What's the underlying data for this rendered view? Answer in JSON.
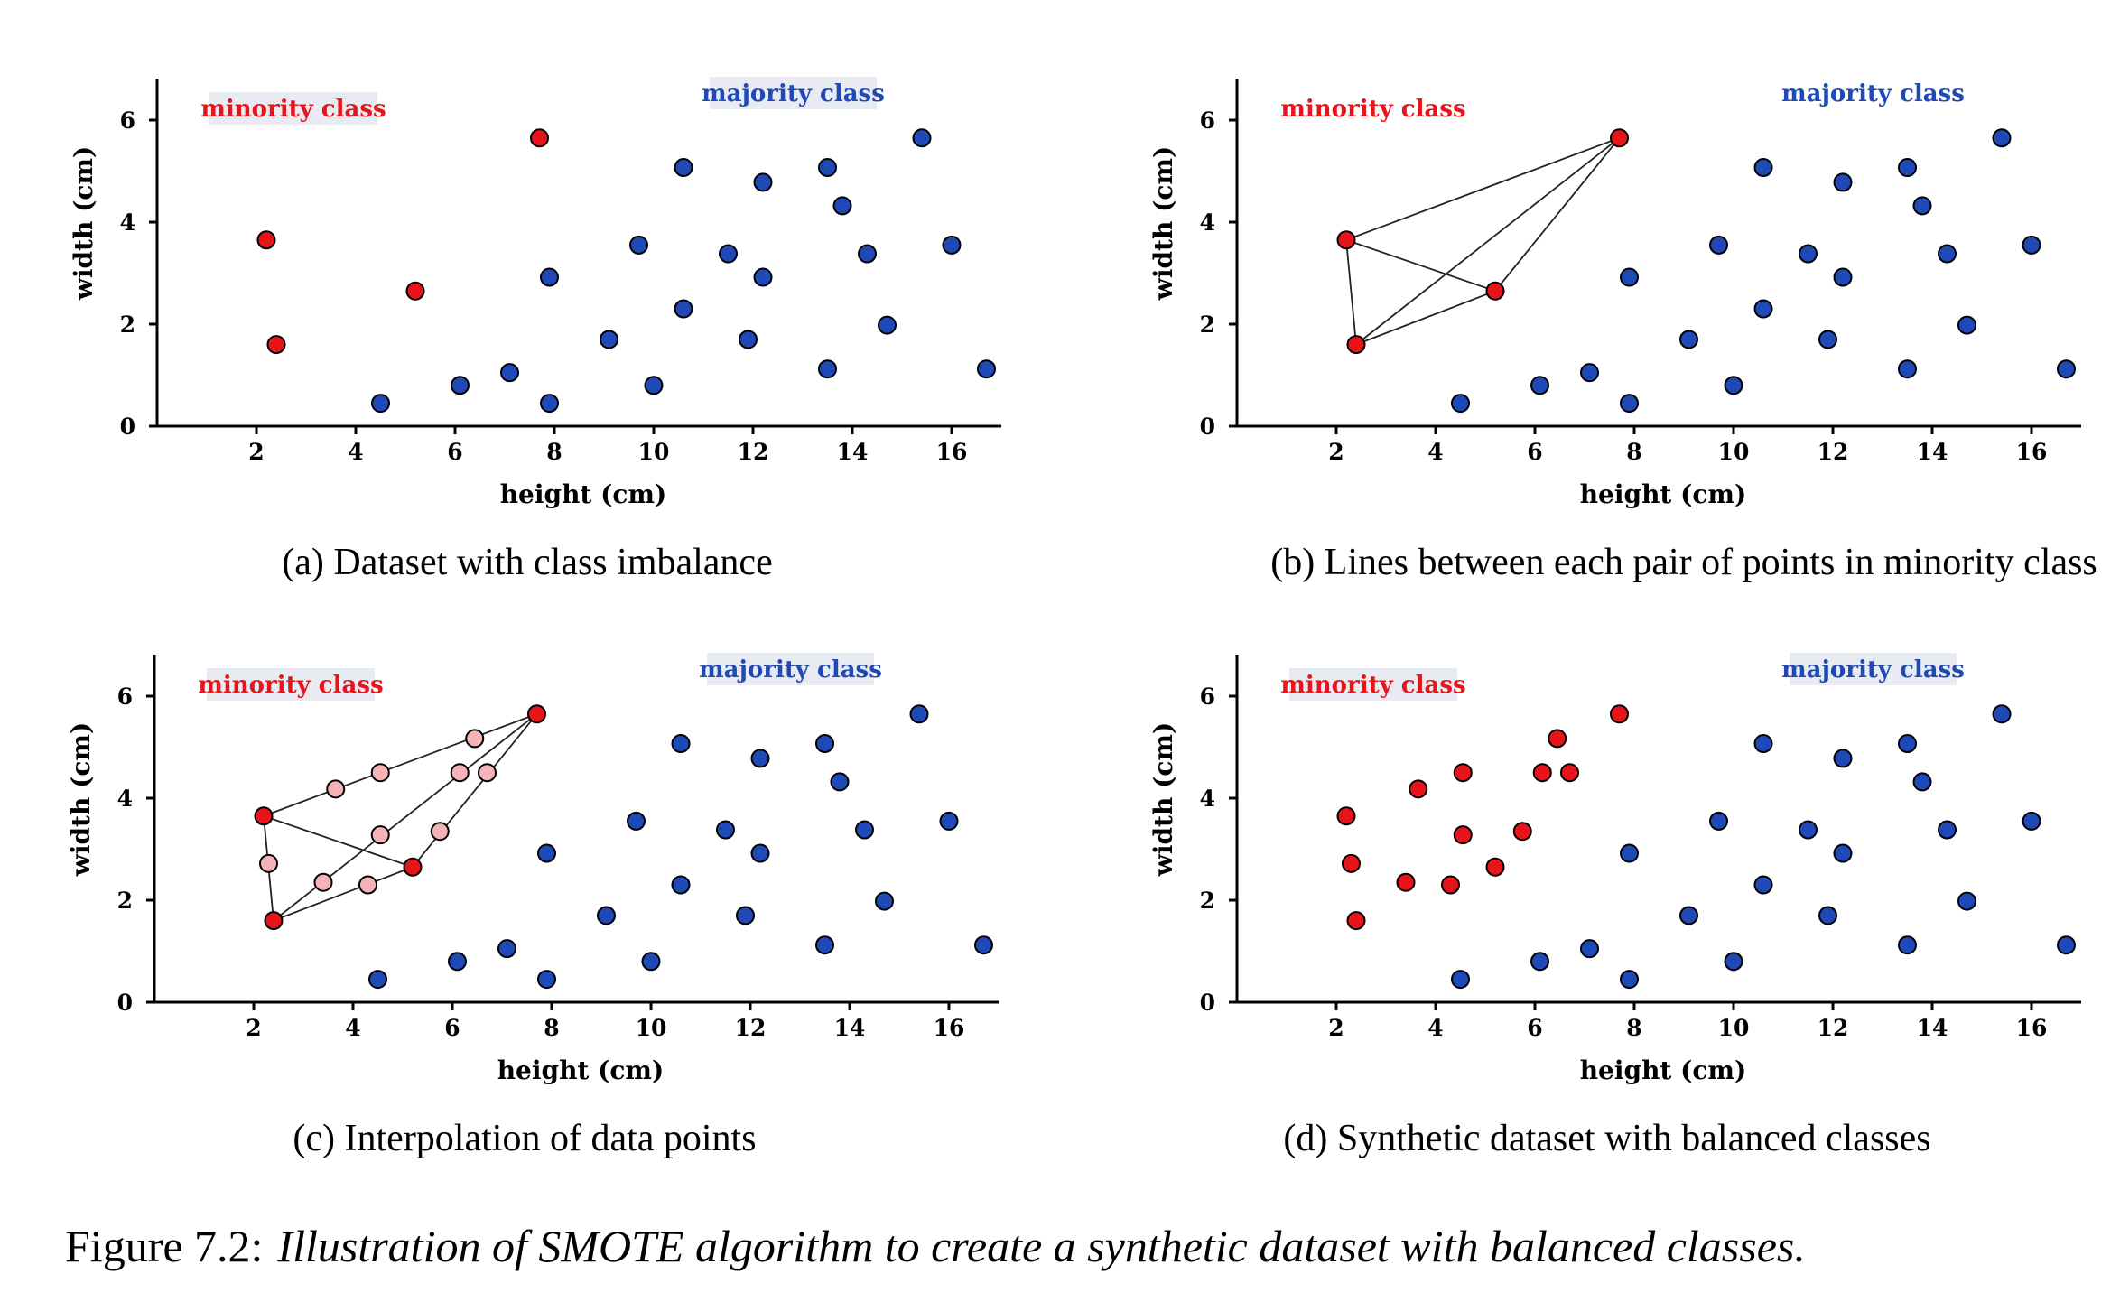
{
  "figure_caption": {
    "prefix": "Figure 7.2:",
    "text": "Illustration of SMOTE algorithm to create a synthetic dataset with balanced classes."
  },
  "colors": {
    "minority": "#e8141b",
    "majority": "#1f49b6",
    "synthetic": "#f4b3b6",
    "legend_bg": "#e9ebf3"
  },
  "chart_data": [
    {
      "type": "scatter",
      "caption": "(a) Dataset with class imbalance",
      "xlabel": "height (cm)",
      "ylabel": "width (cm)",
      "xticks": [
        2,
        4,
        6,
        8,
        10,
        12,
        14,
        16
      ],
      "yticks": [
        0,
        2,
        4,
        6
      ],
      "xlim": [
        0,
        17
      ],
      "ylim": [
        0,
        6.8
      ],
      "legend": {
        "minority": "minority class",
        "majority": "majority class",
        "minority_box": true,
        "majority_box": true
      },
      "series": [
        {
          "name": "minority class",
          "class": "minority",
          "points": [
            [
              2.2,
              3.65
            ],
            [
              2.4,
              1.6
            ],
            [
              5.2,
              2.65
            ],
            [
              7.7,
              5.65
            ]
          ]
        },
        {
          "name": "majority class",
          "class": "majority",
          "points": [
            [
              4.5,
              0.45
            ],
            [
              6.1,
              0.8
            ],
            [
              7.1,
              1.05
            ],
            [
              7.9,
              0.45
            ],
            [
              7.9,
              2.92
            ],
            [
              9.1,
              1.7
            ],
            [
              9.7,
              3.55
            ],
            [
              10.0,
              0.8
            ],
            [
              10.6,
              2.3
            ],
            [
              10.6,
              5.07
            ],
            [
              11.5,
              3.38
            ],
            [
              11.9,
              1.7
            ],
            [
              12.2,
              4.78
            ],
            [
              12.2,
              2.92
            ],
            [
              13.5,
              5.07
            ],
            [
              13.5,
              1.12
            ],
            [
              13.8,
              4.32
            ],
            [
              14.3,
              3.38
            ],
            [
              14.7,
              1.98
            ],
            [
              15.4,
              5.65
            ],
            [
              16.0,
              3.55
            ],
            [
              16.7,
              1.12
            ]
          ]
        }
      ],
      "edges": []
    },
    {
      "type": "scatter",
      "caption": "(b) Lines between each pair of points in minority class",
      "xlabel": "height (cm)",
      "ylabel": "width (cm)",
      "xticks": [
        2,
        4,
        6,
        8,
        10,
        12,
        14,
        16
      ],
      "yticks": [
        0,
        2,
        4,
        6
      ],
      "xlim": [
        0,
        17
      ],
      "ylim": [
        0,
        6.8
      ],
      "legend": {
        "minority": "minority class",
        "majority": "majority class",
        "minority_box": false,
        "majority_box": false
      },
      "series": [
        {
          "name": "minority class",
          "class": "minority",
          "points": [
            [
              2.2,
              3.65
            ],
            [
              2.4,
              1.6
            ],
            [
              5.2,
              2.65
            ],
            [
              7.7,
              5.65
            ]
          ]
        },
        {
          "name": "majority class",
          "class": "majority",
          "points": [
            [
              4.5,
              0.45
            ],
            [
              6.1,
              0.8
            ],
            [
              7.1,
              1.05
            ],
            [
              7.9,
              0.45
            ],
            [
              7.9,
              2.92
            ],
            [
              9.1,
              1.7
            ],
            [
              9.7,
              3.55
            ],
            [
              10.0,
              0.8
            ],
            [
              10.6,
              2.3
            ],
            [
              10.6,
              5.07
            ],
            [
              11.5,
              3.38
            ],
            [
              11.9,
              1.7
            ],
            [
              12.2,
              4.78
            ],
            [
              12.2,
              2.92
            ],
            [
              13.5,
              5.07
            ],
            [
              13.5,
              1.12
            ],
            [
              13.8,
              4.32
            ],
            [
              14.3,
              3.38
            ],
            [
              14.7,
              1.98
            ],
            [
              15.4,
              5.65
            ],
            [
              16.0,
              3.55
            ],
            [
              16.7,
              1.12
            ]
          ]
        }
      ],
      "edges": [
        [
          [
            2.2,
            3.65
          ],
          [
            2.4,
            1.6
          ]
        ],
        [
          [
            2.2,
            3.65
          ],
          [
            5.2,
            2.65
          ]
        ],
        [
          [
            2.2,
            3.65
          ],
          [
            7.7,
            5.65
          ]
        ],
        [
          [
            2.4,
            1.6
          ],
          [
            5.2,
            2.65
          ]
        ],
        [
          [
            2.4,
            1.6
          ],
          [
            7.7,
            5.65
          ]
        ],
        [
          [
            5.2,
            2.65
          ],
          [
            7.7,
            5.65
          ]
        ]
      ]
    },
    {
      "type": "scatter",
      "caption": "(c) Interpolation of data points",
      "xlabel": "height (cm)",
      "ylabel": "width (cm)",
      "xticks": [
        2,
        4,
        6,
        8,
        10,
        12,
        14,
        16
      ],
      "yticks": [
        0,
        2,
        4,
        6
      ],
      "xlim": [
        0,
        17
      ],
      "ylim": [
        0,
        6.8
      ],
      "legend": {
        "minority": "minority class",
        "majority": "majority class",
        "minority_box": true,
        "majority_box": true
      },
      "series": [
        {
          "name": "minority class",
          "class": "minority",
          "points": [
            [
              2.2,
              3.65
            ],
            [
              2.4,
              1.6
            ],
            [
              5.2,
              2.65
            ],
            [
              7.7,
              5.65
            ]
          ]
        },
        {
          "name": "synthetic",
          "class": "synthetic",
          "points": [
            [
              2.3,
              2.72
            ],
            [
              3.4,
              2.35
            ],
            [
              4.3,
              2.3
            ],
            [
              3.65,
              4.18
            ],
            [
              4.55,
              4.5
            ],
            [
              4.55,
              3.28
            ],
            [
              5.75,
              3.35
            ],
            [
              6.15,
              4.5
            ],
            [
              6.7,
              4.5
            ],
            [
              6.45,
              5.17
            ]
          ]
        },
        {
          "name": "majority class",
          "class": "majority",
          "points": [
            [
              4.5,
              0.45
            ],
            [
              6.1,
              0.8
            ],
            [
              7.1,
              1.05
            ],
            [
              7.9,
              0.45
            ],
            [
              7.9,
              2.92
            ],
            [
              9.1,
              1.7
            ],
            [
              9.7,
              3.55
            ],
            [
              10.0,
              0.8
            ],
            [
              10.6,
              2.3
            ],
            [
              10.6,
              5.07
            ],
            [
              11.5,
              3.38
            ],
            [
              11.9,
              1.7
            ],
            [
              12.2,
              4.78
            ],
            [
              12.2,
              2.92
            ],
            [
              13.5,
              5.07
            ],
            [
              13.5,
              1.12
            ],
            [
              13.8,
              4.32
            ],
            [
              14.3,
              3.38
            ],
            [
              14.7,
              1.98
            ],
            [
              15.4,
              5.65
            ],
            [
              16.0,
              3.55
            ],
            [
              16.7,
              1.12
            ]
          ]
        }
      ],
      "edges": [
        [
          [
            2.2,
            3.65
          ],
          [
            2.4,
            1.6
          ]
        ],
        [
          [
            2.2,
            3.65
          ],
          [
            5.2,
            2.65
          ]
        ],
        [
          [
            2.2,
            3.65
          ],
          [
            7.7,
            5.65
          ]
        ],
        [
          [
            2.4,
            1.6
          ],
          [
            5.2,
            2.65
          ]
        ],
        [
          [
            2.4,
            1.6
          ],
          [
            7.7,
            5.65
          ]
        ],
        [
          [
            5.2,
            2.65
          ],
          [
            7.7,
            5.65
          ]
        ]
      ]
    },
    {
      "type": "scatter",
      "caption": "(d) Synthetic dataset with balanced classes",
      "xlabel": "height (cm)",
      "ylabel": "width (cm)",
      "xticks": [
        2,
        4,
        6,
        8,
        10,
        12,
        14,
        16
      ],
      "yticks": [
        0,
        2,
        4,
        6
      ],
      "xlim": [
        0,
        17
      ],
      "ylim": [
        0,
        6.8
      ],
      "legend": {
        "minority": "minority class",
        "majority": "majority class",
        "minority_box": true,
        "majority_box": true
      },
      "series": [
        {
          "name": "minority class",
          "class": "minority",
          "points": [
            [
              2.2,
              3.65
            ],
            [
              2.4,
              1.6
            ],
            [
              5.2,
              2.65
            ],
            [
              7.7,
              5.65
            ],
            [
              2.3,
              2.72
            ],
            [
              3.4,
              2.35
            ],
            [
              4.3,
              2.3
            ],
            [
              3.65,
              4.18
            ],
            [
              4.55,
              4.5
            ],
            [
              4.55,
              3.28
            ],
            [
              5.75,
              3.35
            ],
            [
              6.15,
              4.5
            ],
            [
              6.7,
              4.5
            ],
            [
              6.45,
              5.17
            ]
          ]
        },
        {
          "name": "majority class",
          "class": "majority",
          "points": [
            [
              4.5,
              0.45
            ],
            [
              6.1,
              0.8
            ],
            [
              7.1,
              1.05
            ],
            [
              7.9,
              0.45
            ],
            [
              7.9,
              2.92
            ],
            [
              9.1,
              1.7
            ],
            [
              9.7,
              3.55
            ],
            [
              10.0,
              0.8
            ],
            [
              10.6,
              2.3
            ],
            [
              10.6,
              5.07
            ],
            [
              11.5,
              3.38
            ],
            [
              11.9,
              1.7
            ],
            [
              12.2,
              4.78
            ],
            [
              12.2,
              2.92
            ],
            [
              13.5,
              5.07
            ],
            [
              13.5,
              1.12
            ],
            [
              13.8,
              4.32
            ],
            [
              14.3,
              3.38
            ],
            [
              14.7,
              1.98
            ],
            [
              15.4,
              5.65
            ],
            [
              16.0,
              3.55
            ],
            [
              16.7,
              1.12
            ]
          ]
        }
      ],
      "edges": []
    }
  ]
}
